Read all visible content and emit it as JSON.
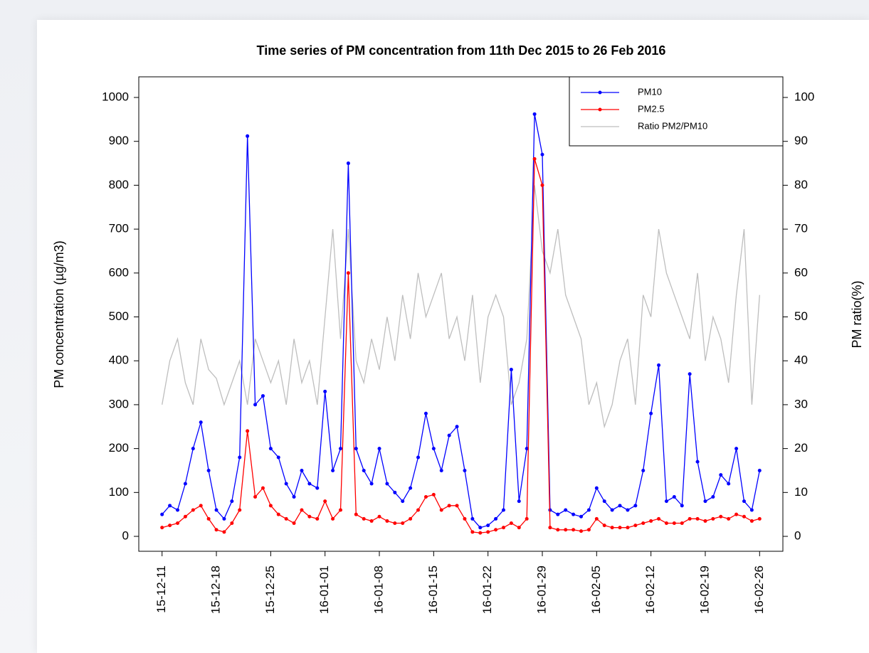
{
  "chart_data": {
    "type": "line",
    "title": "Time series of PM concentration from 11th Dec 2015 to 26 Feb 2016",
    "y_label": "PM concentration (µg/m3)",
    "y2_label": "PM ratio(%)",
    "x": [
      "2015-12-11",
      "2015-12-12",
      "2015-12-13",
      "2015-12-14",
      "2015-12-15",
      "2015-12-16",
      "2015-12-17",
      "2015-12-18",
      "2015-12-19",
      "2015-12-20",
      "2015-12-21",
      "2015-12-22",
      "2015-12-23",
      "2015-12-24",
      "2015-12-25",
      "2015-12-26",
      "2015-12-27",
      "2015-12-28",
      "2015-12-29",
      "2015-12-30",
      "2015-12-31",
      "2016-01-01",
      "2016-01-02",
      "2016-01-03",
      "2016-01-04",
      "2016-01-05",
      "2016-01-06",
      "2016-01-07",
      "2016-01-08",
      "2016-01-09",
      "2016-01-10",
      "2016-01-11",
      "2016-01-12",
      "2016-01-13",
      "2016-01-14",
      "2016-01-15",
      "2016-01-16",
      "2016-01-17",
      "2016-01-18",
      "2016-01-19",
      "2016-01-20",
      "2016-01-21",
      "2016-01-22",
      "2016-01-23",
      "2016-01-24",
      "2016-01-25",
      "2016-01-26",
      "2016-01-27",
      "2016-01-28",
      "2016-01-29",
      "2016-01-30",
      "2016-01-31",
      "2016-02-01",
      "2016-02-02",
      "2016-02-03",
      "2016-02-04",
      "2016-02-05",
      "2016-02-06",
      "2016-02-07",
      "2016-02-08",
      "2016-02-09",
      "2016-02-10",
      "2016-02-11",
      "2016-02-12",
      "2016-02-13",
      "2016-02-14",
      "2016-02-15",
      "2016-02-16",
      "2016-02-17",
      "2016-02-18",
      "2016-02-19",
      "2016-02-20",
      "2016-02-21",
      "2016-02-22",
      "2016-02-23",
      "2016-02-24",
      "2016-02-25",
      "2016-02-26"
    ],
    "series": [
      {
        "name": "PM10",
        "color": "#0000ff",
        "markers": true,
        "values": [
          50,
          70,
          60,
          120,
          200,
          260,
          150,
          60,
          40,
          80,
          180,
          912,
          300,
          320,
          200,
          180,
          120,
          90,
          150,
          120,
          110,
          330,
          150,
          200,
          850,
          200,
          150,
          120,
          200,
          120,
          100,
          80,
          110,
          180,
          280,
          200,
          150,
          230,
          250,
          150,
          40,
          20,
          25,
          40,
          60,
          380,
          80,
          200,
          962,
          870,
          60,
          50,
          60,
          50,
          45,
          60,
          110,
          80,
          60,
          70,
          60,
          70,
          150,
          280,
          390,
          80,
          90,
          70,
          370,
          170,
          80,
          90,
          140,
          120,
          200,
          80,
          60,
          150
        ]
      },
      {
        "name": "PM2.5",
        "color": "#ff0000",
        "markers": true,
        "values": [
          20,
          25,
          30,
          45,
          60,
          70,
          40,
          15,
          10,
          30,
          60,
          240,
          90,
          110,
          70,
          50,
          40,
          30,
          60,
          45,
          40,
          80,
          40,
          60,
          600,
          50,
          40,
          35,
          45,
          35,
          30,
          30,
          40,
          60,
          90,
          95,
          60,
          70,
          70,
          40,
          10,
          8,
          10,
          15,
          20,
          30,
          20,
          40,
          860,
          800,
          20,
          15,
          15,
          15,
          12,
          15,
          40,
          25,
          20,
          20,
          20,
          25,
          30,
          35,
          40,
          30,
          30,
          30,
          40,
          40,
          35,
          40,
          45,
          40,
          50,
          45,
          35,
          40
        ]
      },
      {
        "name": "Ratio PM2/PM10",
        "color": "#bebebe",
        "markers": false,
        "axis": "y2",
        "values": [
          30,
          40,
          45,
          35,
          30,
          45,
          38,
          36,
          30,
          35,
          40,
          30,
          45,
          40,
          35,
          40,
          30,
          45,
          35,
          40,
          30,
          50,
          70,
          45,
          70,
          40,
          35,
          45,
          38,
          50,
          40,
          55,
          45,
          60,
          50,
          55,
          60,
          45,
          50,
          40,
          55,
          35,
          50,
          55,
          50,
          30,
          35,
          45,
          80,
          65,
          60,
          70,
          55,
          50,
          45,
          30,
          35,
          25,
          30,
          40,
          45,
          30,
          55,
          50,
          70,
          60,
          55,
          50,
          45,
          60,
          40,
          50,
          45,
          35,
          55,
          70,
          30,
          55
        ]
      }
    ],
    "xlim": [
      "2015-12-08",
      "2016-02-29"
    ],
    "xticks": [
      {
        "value": "2015-12-11",
        "label": "15-12-11"
      },
      {
        "value": "2015-12-18",
        "label": "15-12-18"
      },
      {
        "value": "2015-12-25",
        "label": "15-12-25"
      },
      {
        "value": "2016-01-01",
        "label": "16-01-01"
      },
      {
        "value": "2016-01-08",
        "label": "16-01-08"
      },
      {
        "value": "2016-01-15",
        "label": "16-01-15"
      },
      {
        "value": "2016-01-22",
        "label": "16-01-22"
      },
      {
        "value": "2016-01-29",
        "label": "16-01-29"
      },
      {
        "value": "2016-02-05",
        "label": "16-02-05"
      },
      {
        "value": "2016-02-12",
        "label": "16-02-12"
      },
      {
        "value": "2016-02-19",
        "label": "16-02-19"
      },
      {
        "value": "2016-02-26",
        "label": "16-02-26"
      }
    ],
    "ylim": [
      -34,
      1047
    ],
    "yticks": [
      0,
      100,
      200,
      300,
      400,
      500,
      600,
      700,
      800,
      900,
      1000
    ],
    "y2lim": [
      -3.4,
      104.7
    ],
    "y2ticks": [
      0,
      10,
      20,
      30,
      40,
      50,
      60,
      70,
      80,
      90,
      100
    ],
    "legend": "topright"
  }
}
